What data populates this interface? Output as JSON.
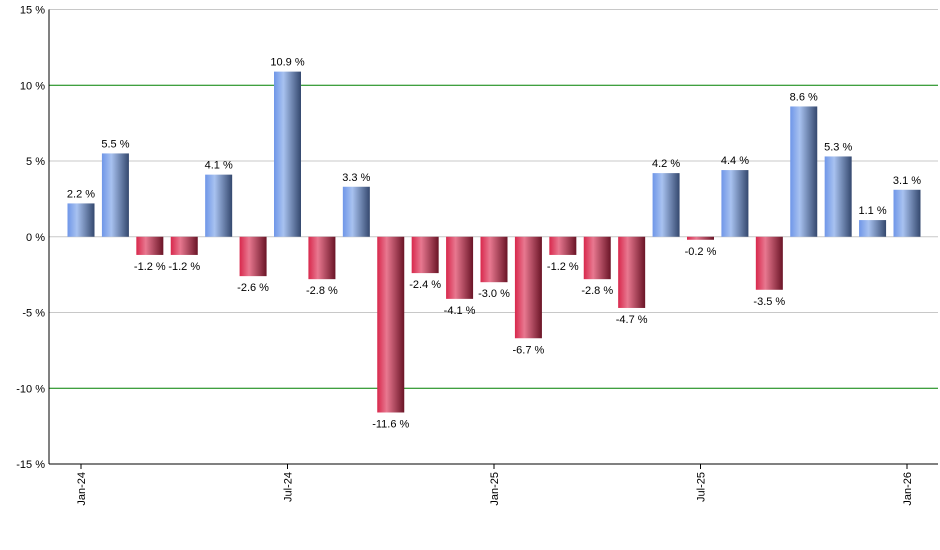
{
  "chart_data": {
    "type": "bar",
    "title": "",
    "xlabel": "",
    "ylabel": "",
    "ylim": [
      -15,
      15
    ],
    "yticks": [
      15,
      10,
      5,
      0,
      -5,
      -10,
      -15
    ],
    "ytick_labels": [
      "15 %",
      "10 %",
      "5 %",
      "0 %",
      "-5 %",
      "-10 %",
      "-15 %"
    ],
    "grid": true,
    "reference_lines": [
      10,
      -10
    ],
    "reference_line_color": "#008000",
    "categories": [
      "Jan-24",
      "Feb-24",
      "Mar-24",
      "Apr-24",
      "May-24",
      "Jun-24",
      "Jul-24",
      "Aug-24",
      "Sep-24",
      "Oct-24",
      "Nov-24",
      "Dec-24",
      "Jan-25",
      "Feb-25",
      "Mar-25",
      "Apr-25",
      "May-25",
      "Jun-25",
      "Jul-25",
      "Aug-25",
      "Sep-25",
      "Oct-25",
      "Nov-25",
      "Dec-25",
      "Jan-26"
    ],
    "xtick_labels": [
      "Jan-24",
      "Jul-24",
      "Jan-25",
      "Jul-25",
      "Jan-26"
    ],
    "values": [
      2.2,
      5.5,
      -1.2,
      -1.2,
      4.1,
      -2.6,
      10.9,
      -2.8,
      3.3,
      -11.6,
      -2.4,
      -4.1,
      -3.0,
      -6.7,
      -1.2,
      -2.8,
      -4.7,
      4.2,
      -0.2,
      4.4,
      -3.5,
      8.6,
      5.3,
      1.1,
      3.1
    ],
    "data_labels": [
      "2.2 %",
      "5.5 %",
      "-1.2 %",
      "-1.2 %",
      "4.1 %",
      "-2.6 %",
      "10.9 %",
      "-2.8 %",
      "3.3 %",
      "-11.6 %",
      "-2.4 %",
      "-4.1 %",
      "-3.0 %",
      "-6.7 %",
      "-1.2 %",
      "-2.8 %",
      "-4.7 %",
      "4.2 %",
      "-0.2 %",
      "4.4 %",
      "-3.5 %",
      "8.6 %",
      "5.3 %",
      "1.1 %",
      "3.1 %"
    ],
    "positive_color": "#6f96e0",
    "negative_color": "#d0284c"
  }
}
